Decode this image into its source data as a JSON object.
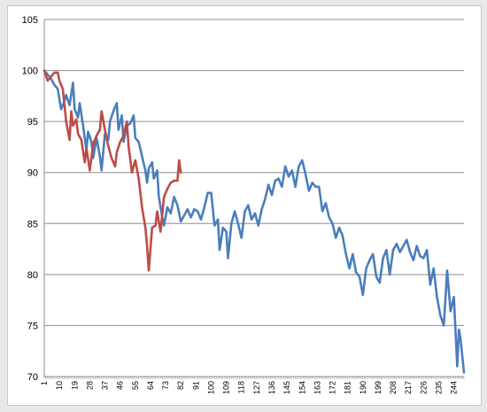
{
  "chart_data": {
    "type": "line",
    "title": "",
    "xlabel": "",
    "ylabel": "",
    "ylim": [
      70,
      105
    ],
    "y_ticks": [
      70,
      75,
      80,
      85,
      90,
      95,
      100,
      105
    ],
    "x_tick_labels": [
      "1",
      "10",
      "19",
      "28",
      "37",
      "46",
      "55",
      "64",
      "73",
      "82",
      "91",
      "100",
      "109",
      "118",
      "127",
      "136",
      "145",
      "154",
      "163",
      "172",
      "181",
      "190",
      "199",
      "208",
      "217",
      "226",
      "235",
      "244"
    ],
    "x_range": [
      1,
      250
    ],
    "grid": "horizontal",
    "legend": "none",
    "series": [
      {
        "color": "#4a7ebb",
        "points": [
          [
            1,
            100
          ],
          [
            3,
            99.6
          ],
          [
            5,
            99.2
          ],
          [
            7,
            98.6
          ],
          [
            9,
            98.2
          ],
          [
            11,
            96.2
          ],
          [
            13,
            97
          ],
          [
            14,
            97.6
          ],
          [
            16,
            96.6
          ],
          [
            18,
            98.8
          ],
          [
            19,
            96.2
          ],
          [
            21,
            95.4
          ],
          [
            22,
            96.8
          ],
          [
            24,
            94.6
          ],
          [
            26,
            92.2
          ],
          [
            27,
            94
          ],
          [
            29,
            93
          ],
          [
            30,
            91.4
          ],
          [
            32,
            93.4
          ],
          [
            34,
            91.6
          ],
          [
            35,
            90.2
          ],
          [
            37,
            93.8
          ],
          [
            39,
            93.2
          ],
          [
            40,
            95
          ],
          [
            42,
            96
          ],
          [
            44,
            96.8
          ],
          [
            45,
            94.2
          ],
          [
            47,
            95.6
          ],
          [
            48,
            93
          ],
          [
            50,
            94.6
          ],
          [
            52,
            94.8
          ],
          [
            54,
            95.6
          ],
          [
            55,
            93.4
          ],
          [
            57,
            93
          ],
          [
            59,
            91.6
          ],
          [
            61,
            90.2
          ],
          [
            62,
            89
          ],
          [
            63,
            90.4
          ],
          [
            65,
            91
          ],
          [
            66,
            89.4
          ],
          [
            68,
            90.2
          ],
          [
            69,
            87.6
          ],
          [
            71,
            85.6
          ],
          [
            72,
            84.8
          ],
          [
            74,
            86.6
          ],
          [
            76,
            86
          ],
          [
            78,
            87.6
          ],
          [
            80,
            86.8
          ],
          [
            82,
            85.2
          ],
          [
            84,
            85.8
          ],
          [
            86,
            86.4
          ],
          [
            88,
            85.6
          ],
          [
            90,
            86.4
          ],
          [
            92,
            86.2
          ],
          [
            94,
            85.4
          ],
          [
            96,
            86.6
          ],
          [
            98,
            88
          ],
          [
            100,
            88
          ],
          [
            102,
            84.8
          ],
          [
            104,
            85.4
          ],
          [
            105,
            82.4
          ],
          [
            107,
            84.6
          ],
          [
            109,
            84.2
          ],
          [
            110,
            81.6
          ],
          [
            112,
            85
          ],
          [
            114,
            86.2
          ],
          [
            116,
            85
          ],
          [
            118,
            83.6
          ],
          [
            120,
            86.2
          ],
          [
            122,
            86.8
          ],
          [
            124,
            85.4
          ],
          [
            126,
            86
          ],
          [
            128,
            84.8
          ],
          [
            130,
            86.4
          ],
          [
            132,
            87.4
          ],
          [
            134,
            88.8
          ],
          [
            136,
            87.8
          ],
          [
            138,
            89.2
          ],
          [
            140,
            89.4
          ],
          [
            142,
            88.6
          ],
          [
            144,
            90.6
          ],
          [
            146,
            89.6
          ],
          [
            148,
            90.2
          ],
          [
            150,
            88.6
          ],
          [
            152,
            90.6
          ],
          [
            154,
            91.2
          ],
          [
            156,
            89.8
          ],
          [
            158,
            88.2
          ],
          [
            160,
            89
          ],
          [
            162,
            88.6
          ],
          [
            164,
            88.6
          ],
          [
            166,
            86.2
          ],
          [
            168,
            87
          ],
          [
            170,
            85.6
          ],
          [
            172,
            85
          ],
          [
            174,
            83.6
          ],
          [
            176,
            84.6
          ],
          [
            178,
            83.8
          ],
          [
            180,
            82
          ],
          [
            182,
            80.6
          ],
          [
            184,
            82
          ],
          [
            186,
            80.2
          ],
          [
            188,
            79.8
          ],
          [
            190,
            78
          ],
          [
            192,
            80.6
          ],
          [
            194,
            81.4
          ],
          [
            196,
            82
          ],
          [
            198,
            79.8
          ],
          [
            200,
            79.2
          ],
          [
            202,
            81.6
          ],
          [
            204,
            82.4
          ],
          [
            206,
            80
          ],
          [
            208,
            82.4
          ],
          [
            210,
            83
          ],
          [
            212,
            82.2
          ],
          [
            214,
            82.8
          ],
          [
            216,
            83.4
          ],
          [
            218,
            82.2
          ],
          [
            220,
            81.4
          ],
          [
            222,
            82.8
          ],
          [
            224,
            81.8
          ],
          [
            226,
            81.6
          ],
          [
            228,
            82.4
          ],
          [
            230,
            79
          ],
          [
            232,
            80.6
          ],
          [
            234,
            77.8
          ],
          [
            236,
            76
          ],
          [
            238,
            75
          ],
          [
            240,
            80.4
          ],
          [
            242,
            76.4
          ],
          [
            244,
            77.8
          ],
          [
            246,
            71
          ],
          [
            247,
            74.6
          ],
          [
            248,
            73.6
          ],
          [
            250,
            70.4
          ]
        ]
      },
      {
        "color": "#be4b48",
        "points": [
          [
            1,
            100
          ],
          [
            3,
            99
          ],
          [
            5,
            99.4
          ],
          [
            7,
            99.8
          ],
          [
            9,
            99.8
          ],
          [
            10,
            99
          ],
          [
            12,
            98.2
          ],
          [
            14,
            95
          ],
          [
            16,
            93.2
          ],
          [
            17,
            96
          ],
          [
            18,
            94.6
          ],
          [
            20,
            95.2
          ],
          [
            21,
            93.8
          ],
          [
            23,
            93.2
          ],
          [
            25,
            91
          ],
          [
            26,
            92.4
          ],
          [
            28,
            90.2
          ],
          [
            30,
            92.8
          ],
          [
            32,
            93.6
          ],
          [
            34,
            94.2
          ],
          [
            35,
            96
          ],
          [
            37,
            94.2
          ],
          [
            39,
            92.6
          ],
          [
            41,
            91.4
          ],
          [
            43,
            90.6
          ],
          [
            44,
            92
          ],
          [
            46,
            93
          ],
          [
            48,
            93.6
          ],
          [
            50,
            95
          ],
          [
            51,
            92.6
          ],
          [
            53,
            90
          ],
          [
            55,
            91.2
          ],
          [
            57,
            89.4
          ],
          [
            59,
            86.6
          ],
          [
            61,
            84.6
          ],
          [
            62,
            82.8
          ],
          [
            63,
            80.4
          ],
          [
            65,
            84.6
          ],
          [
            67,
            84.8
          ],
          [
            68,
            86.2
          ],
          [
            70,
            84.2
          ],
          [
            72,
            87.6
          ],
          [
            74,
            88.4
          ],
          [
            76,
            89
          ],
          [
            78,
            89.2
          ],
          [
            80,
            89.2
          ],
          [
            81,
            91.2
          ],
          [
            82,
            90
          ]
        ]
      }
    ]
  }
}
